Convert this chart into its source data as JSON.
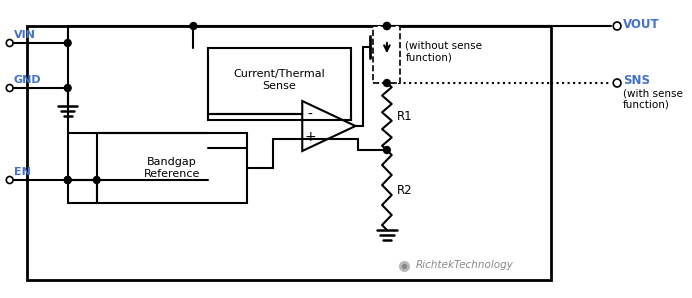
{
  "background_color": "#ffffff",
  "vin_label": "VIN",
  "gnd_label": "GND",
  "en_label": "EN",
  "vout_label": "VOUT",
  "sns_label": "SNS",
  "r1_label": "R1",
  "r2_label": "R2",
  "current_thermal_label": "Current/Thermal\nSense",
  "bandgap_label": "Bandgap\nReference",
  "without_sense_label": "(without sense\nfunction)",
  "with_sense_label": "(with sense\nfunction)",
  "richtek_label": "RichtekTechnology",
  "label_color": "#4472c4",
  "line_color": "#000000",
  "lw": 1.5
}
